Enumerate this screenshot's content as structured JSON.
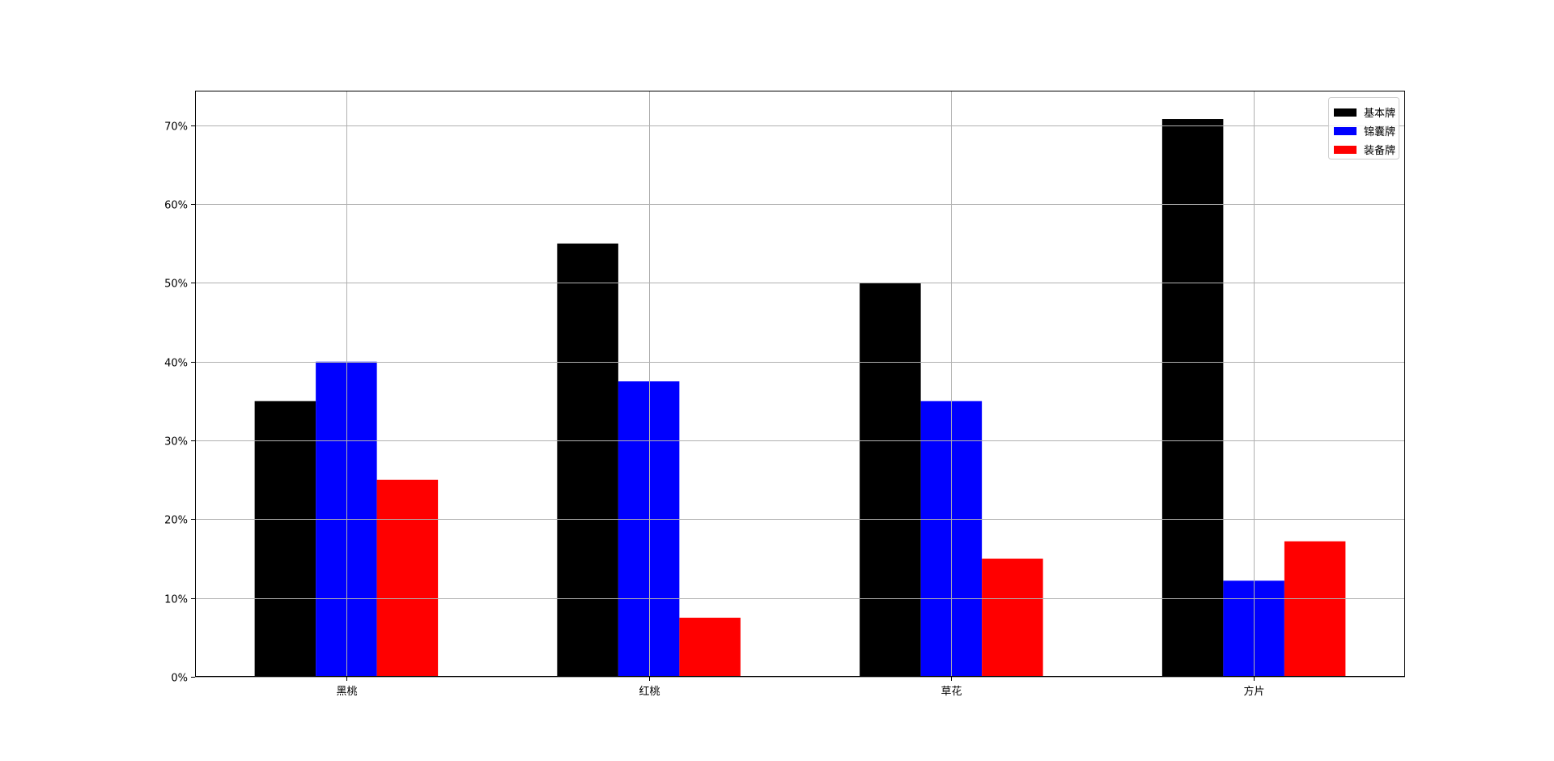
{
  "chart_data": {
    "type": "bar",
    "categories": [
      "黑桃",
      "红桃",
      "草花",
      "方片"
    ],
    "series": [
      {
        "name": "基本牌",
        "color": "#000000",
        "values": [
          35,
          55,
          50,
          70.8
        ]
      },
      {
        "name": "锦囊牌",
        "color": "#0000ff",
        "values": [
          40,
          37.5,
          35,
          12.2
        ]
      },
      {
        "name": "装备牌",
        "color": "#ff0000",
        "values": [
          25,
          7.5,
          15,
          17.2
        ]
      }
    ],
    "value_unit": "%",
    "ylim": [
      0,
      74.4
    ],
    "yticks": [
      0,
      10,
      20,
      30,
      40,
      50,
      60,
      70
    ],
    "ytick_labels": [
      "0%",
      "10%",
      "20%",
      "30%",
      "40%",
      "50%",
      "60%",
      "70%"
    ],
    "grid": true,
    "legend_position": "top-right"
  }
}
